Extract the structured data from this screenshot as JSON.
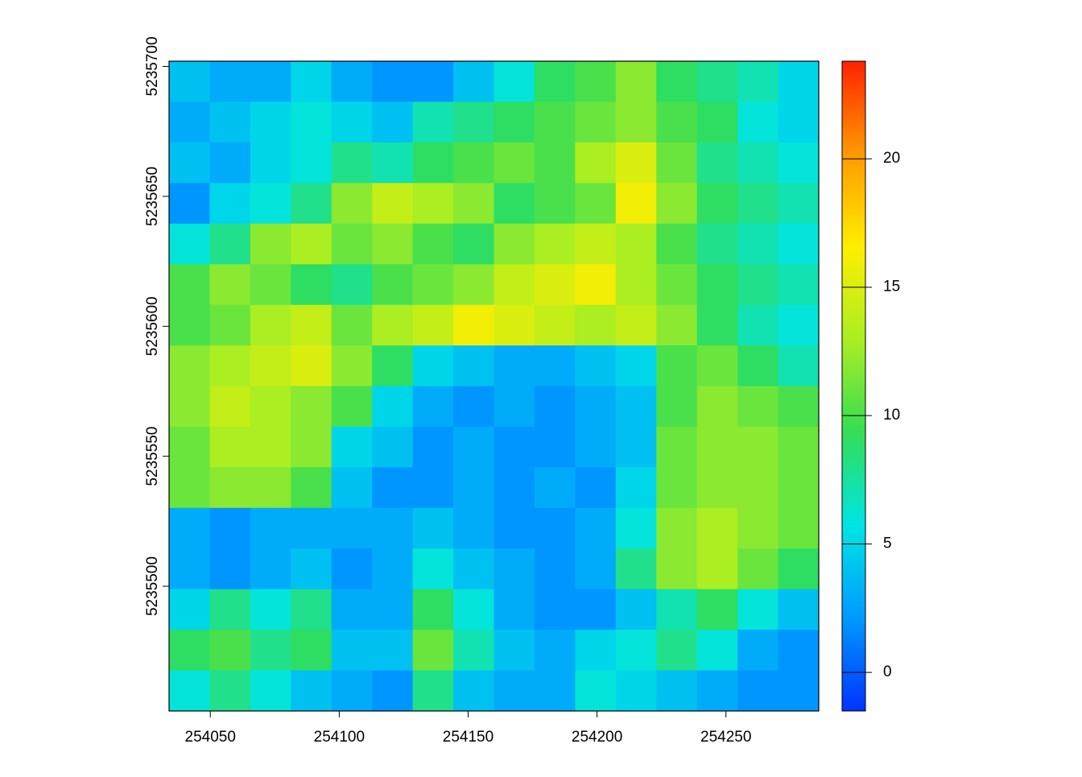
{
  "chart_data": {
    "type": "raster",
    "xlim": [
      254034,
      254286
    ],
    "ylim": [
      5235452,
      5235702
    ],
    "xticks": [
      254050,
      254100,
      254150,
      254200,
      254250
    ],
    "yticks": [
      5235500,
      5235550,
      5235600,
      5235650,
      5235700
    ],
    "zlim": [
      -1.5,
      23.8
    ],
    "zticks": [
      0,
      5,
      10,
      15,
      20
    ],
    "colormap": [
      "#0033ff",
      "#0099ff",
      "#00e5e5",
      "#33dd55",
      "#aaee22",
      "#ffee00",
      "#ff9900",
      "#ff2200"
    ],
    "z": [
      [
        4,
        3,
        3,
        5,
        3,
        2,
        2,
        4,
        6,
        9,
        10,
        12,
        9,
        8,
        7,
        5
      ],
      [
        3,
        4,
        5,
        6,
        5,
        4,
        7,
        8,
        9,
        10,
        11,
        12,
        10,
        9,
        6,
        5
      ],
      [
        4,
        3,
        5,
        6,
        8,
        7,
        9,
        10,
        11,
        10,
        13,
        15,
        11,
        8,
        7,
        6
      ],
      [
        2,
        5,
        6,
        8,
        12,
        14,
        13,
        12,
        9,
        10,
        11,
        16,
        12,
        9,
        8,
        7
      ],
      [
        6,
        8,
        12,
        13,
        11,
        12,
        10,
        9,
        12,
        13,
        14,
        13,
        10,
        8,
        7,
        6
      ],
      [
        10,
        12,
        11,
        9,
        8,
        10,
        11,
        12,
        14,
        15,
        16,
        13,
        11,
        9,
        8,
        7
      ],
      [
        10,
        11,
        13,
        14,
        11,
        13,
        14,
        16,
        15,
        14,
        13,
        14,
        12,
        9,
        7,
        6
      ],
      [
        12,
        13,
        14,
        15,
        12,
        9,
        5,
        4,
        3,
        3,
        4,
        5,
        10,
        11,
        9,
        7
      ],
      [
        12,
        14,
        13,
        12,
        10,
        5,
        3,
        2,
        3,
        2,
        3,
        4,
        10,
        12,
        11,
        10
      ],
      [
        11,
        13,
        13,
        12,
        5,
        4,
        2,
        3,
        2,
        2,
        3,
        4,
        11,
        12,
        12,
        11
      ],
      [
        11,
        12,
        12,
        10,
        4,
        2,
        2,
        3,
        2,
        3,
        2,
        5,
        11,
        12,
        12,
        11
      ],
      [
        3,
        2,
        3,
        3,
        3,
        3,
        4,
        3,
        2,
        2,
        3,
        6,
        12,
        13,
        12,
        11
      ],
      [
        3,
        2,
        3,
        4,
        2,
        3,
        6,
        4,
        3,
        2,
        3,
        8,
        12,
        13,
        11,
        9
      ],
      [
        5,
        8,
        6,
        8,
        3,
        3,
        9,
        6,
        3,
        2,
        2,
        4,
        7,
        9,
        6,
        4
      ],
      [
        9,
        10,
        8,
        9,
        4,
        4,
        11,
        7,
        4,
        3,
        5,
        6,
        8,
        6,
        3,
        2
      ],
      [
        6,
        8,
        6,
        4,
        3,
        2,
        8,
        4,
        3,
        3,
        6,
        5,
        4,
        3,
        2,
        2
      ]
    ]
  }
}
